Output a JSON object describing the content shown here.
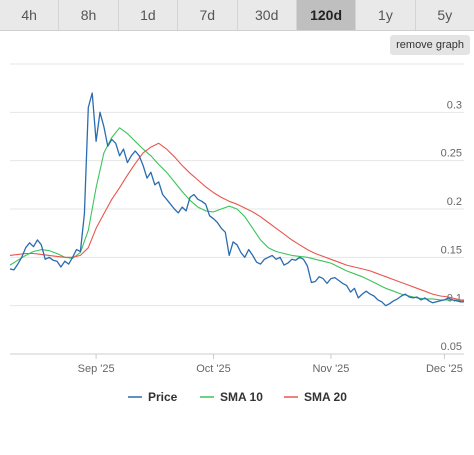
{
  "timeframe_tabs": [
    {
      "label": "4h",
      "active": false
    },
    {
      "label": "8h",
      "active": false
    },
    {
      "label": "1d",
      "active": false
    },
    {
      "label": "7d",
      "active": false
    },
    {
      "label": "30d",
      "active": false
    },
    {
      "label": "120d",
      "active": true
    },
    {
      "label": "1y",
      "active": false
    },
    {
      "label": "5y",
      "active": false
    }
  ],
  "remove_graph_label": "remove graph",
  "chart_data": {
    "type": "line",
    "title": "",
    "xlabel": "",
    "ylabel": "",
    "x_tick_labels": [
      "Sep '25",
      "Oct '25",
      "Nov '25",
      "Dec '25"
    ],
    "x_tick_days": [
      22,
      52,
      82,
      111
    ],
    "x_range": [
      0,
      116
    ],
    "y_ticks": [
      0.05,
      0.1,
      0.15,
      0.2,
      0.25,
      0.3
    ],
    "ylim": [
      0.05,
      0.35
    ],
    "grid": "horizontal",
    "legend_position": "bottom",
    "series": [
      {
        "name": "Price",
        "color": "#2b6cb0",
        "x": [
          0,
          1,
          2,
          3,
          4,
          5,
          6,
          7,
          8,
          9,
          10,
          11,
          12,
          13,
          14,
          15,
          16,
          17,
          18,
          19,
          20,
          21,
          22,
          23,
          24,
          25,
          26,
          27,
          28,
          29,
          30,
          31,
          32,
          33,
          34,
          35,
          36,
          37,
          38,
          39,
          40,
          41,
          42,
          43,
          44,
          45,
          46,
          47,
          48,
          49,
          50,
          51,
          52,
          53,
          54,
          55,
          56,
          57,
          58,
          59,
          60,
          61,
          62,
          63,
          64,
          65,
          66,
          67,
          68,
          69,
          70,
          71,
          72,
          73,
          74,
          75,
          76,
          77,
          78,
          79,
          80,
          81,
          82,
          83,
          84,
          85,
          86,
          87,
          88,
          89,
          90,
          91,
          92,
          93,
          94,
          95,
          96,
          97,
          98,
          99,
          100,
          101,
          102,
          103,
          104,
          105,
          106,
          107,
          108,
          109,
          110,
          111,
          112,
          113,
          114,
          115,
          116
        ],
        "values": [
          0.138,
          0.137,
          0.143,
          0.15,
          0.16,
          0.165,
          0.161,
          0.168,
          0.163,
          0.148,
          0.15,
          0.147,
          0.146,
          0.14,
          0.146,
          0.143,
          0.15,
          0.158,
          0.156,
          0.195,
          0.305,
          0.32,
          0.27,
          0.3,
          0.285,
          0.265,
          0.272,
          0.268,
          0.255,
          0.262,
          0.248,
          0.255,
          0.26,
          0.255,
          0.245,
          0.232,
          0.238,
          0.225,
          0.228,
          0.215,
          0.21,
          0.205,
          0.2,
          0.196,
          0.202,
          0.198,
          0.212,
          0.215,
          0.21,
          0.208,
          0.205,
          0.193,
          0.19,
          0.186,
          0.18,
          0.176,
          0.152,
          0.166,
          0.163,
          0.155,
          0.15,
          0.158,
          0.152,
          0.145,
          0.143,
          0.148,
          0.15,
          0.152,
          0.148,
          0.15,
          0.142,
          0.144,
          0.148,
          0.147,
          0.15,
          0.148,
          0.141,
          0.124,
          0.125,
          0.13,
          0.128,
          0.123,
          0.128,
          0.129,
          0.126,
          0.123,
          0.121,
          0.114,
          0.118,
          0.108,
          0.112,
          0.115,
          0.112,
          0.11,
          0.106,
          0.104,
          0.1,
          0.102,
          0.105,
          0.107,
          0.11,
          0.112,
          0.109,
          0.108,
          0.109,
          0.106,
          0.108,
          0.105,
          0.103,
          0.104,
          0.105,
          0.106,
          0.108,
          0.106,
          0.105,
          0.104,
          0.104
        ]
      },
      {
        "name": "SMA 10",
        "color": "#3cc45a",
        "x": [
          0,
          2,
          4,
          6,
          8,
          10,
          12,
          14,
          16,
          18,
          20,
          22,
          24,
          26,
          28,
          30,
          32,
          34,
          36,
          38,
          40,
          42,
          44,
          46,
          48,
          50,
          52,
          54,
          56,
          58,
          60,
          62,
          64,
          66,
          68,
          70,
          72,
          74,
          76,
          78,
          80,
          82,
          84,
          86,
          88,
          90,
          92,
          94,
          96,
          98,
          100,
          102,
          104,
          106,
          108,
          110,
          112,
          114,
          116
        ],
        "values": [
          0.142,
          0.147,
          0.152,
          0.156,
          0.158,
          0.157,
          0.154,
          0.15,
          0.149,
          0.155,
          0.178,
          0.222,
          0.258,
          0.274,
          0.284,
          0.278,
          0.27,
          0.262,
          0.255,
          0.246,
          0.238,
          0.228,
          0.218,
          0.209,
          0.202,
          0.198,
          0.197,
          0.2,
          0.203,
          0.2,
          0.192,
          0.18,
          0.168,
          0.16,
          0.156,
          0.154,
          0.152,
          0.151,
          0.15,
          0.148,
          0.146,
          0.144,
          0.14,
          0.136,
          0.133,
          0.13,
          0.126,
          0.122,
          0.118,
          0.115,
          0.112,
          0.11,
          0.108,
          0.107,
          0.107,
          0.106,
          0.106,
          0.106,
          0.106
        ]
      },
      {
        "name": "SMA 20",
        "color": "#e8574f",
        "x": [
          0,
          2,
          4,
          6,
          8,
          10,
          12,
          14,
          16,
          18,
          20,
          22,
          24,
          26,
          28,
          30,
          32,
          34,
          36,
          38,
          40,
          42,
          44,
          46,
          48,
          50,
          52,
          54,
          56,
          58,
          60,
          62,
          64,
          66,
          68,
          70,
          72,
          74,
          76,
          78,
          80,
          82,
          84,
          86,
          88,
          90,
          92,
          94,
          96,
          98,
          100,
          102,
          104,
          106,
          108,
          110,
          112,
          114,
          116
        ],
        "values": [
          0.152,
          0.153,
          0.154,
          0.154,
          0.153,
          0.152,
          0.151,
          0.15,
          0.15,
          0.152,
          0.16,
          0.18,
          0.195,
          0.21,
          0.222,
          0.235,
          0.247,
          0.258,
          0.264,
          0.268,
          0.262,
          0.254,
          0.245,
          0.237,
          0.23,
          0.223,
          0.217,
          0.212,
          0.208,
          0.205,
          0.201,
          0.197,
          0.192,
          0.186,
          0.18,
          0.174,
          0.168,
          0.163,
          0.158,
          0.154,
          0.151,
          0.148,
          0.145,
          0.142,
          0.14,
          0.138,
          0.136,
          0.133,
          0.13,
          0.127,
          0.124,
          0.121,
          0.118,
          0.115,
          0.112,
          0.11,
          0.109,
          0.107,
          0.105
        ]
      }
    ]
  }
}
